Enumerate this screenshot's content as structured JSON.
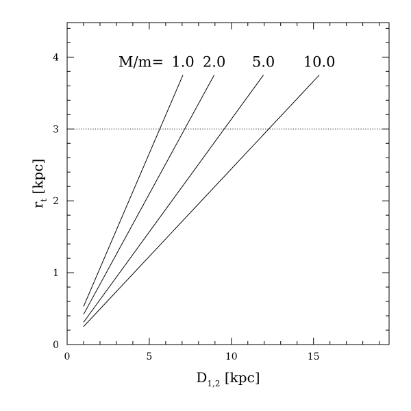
{
  "chart_data": {
    "type": "line",
    "xlabel": {
      "main": "D",
      "sub": "1,2",
      "unit": " [kpc]"
    },
    "ylabel": {
      "main": "r",
      "sub": "t",
      "unit": " [kpc]"
    },
    "xlim": [
      0,
      19.6
    ],
    "ylim": [
      0,
      4.48
    ],
    "x_ticks": [
      0,
      5,
      10,
      15
    ],
    "y_ticks": [
      0,
      1,
      2,
      3,
      4
    ],
    "x_minor_step": 1,
    "y_minor_step": 0.2,
    "grid": false,
    "reference_line": {
      "y": 3.0,
      "style": "dotted"
    },
    "annotation_prefix": "M/m=",
    "series": [
      {
        "label": "1.0",
        "x": [
          1.0,
          7.05
        ],
        "y": [
          0.53,
          3.75
        ]
      },
      {
        "label": "2.0",
        "x": [
          1.0,
          8.95
        ],
        "y": [
          0.42,
          3.75
        ]
      },
      {
        "label": "5.0",
        "x": [
          1.0,
          11.95
        ],
        "y": [
          0.31,
          3.75
        ]
      },
      {
        "label": "10.0",
        "x": [
          1.0,
          15.35
        ],
        "y": [
          0.25,
          3.75
        ]
      }
    ],
    "colors": {
      "line": "#000000",
      "background": "#ffffff"
    }
  }
}
